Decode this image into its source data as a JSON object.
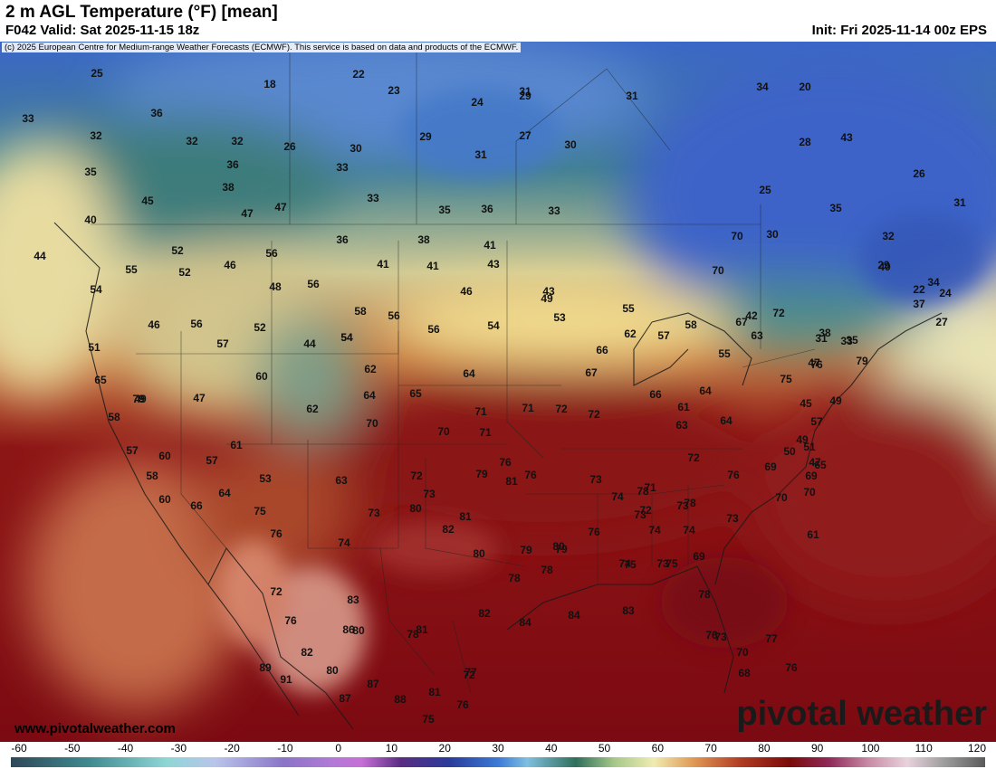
{
  "header": {
    "title": "2 m AGL Temperature (°F) [mean]",
    "valid": "F042 Valid: Sat 2025-11-15 18z",
    "init": "Init: Fri 2025-11-14 00z EPS"
  },
  "map": {
    "copyright": "(c) 2025 European Centre for Medium-range Weather Forecasts (ECMWF). This service is based on data and products of the ECMWF.",
    "values": [
      "25",
      "18",
      "22",
      "23",
      "31",
      "33",
      "36",
      "32",
      "32",
      "32",
      "26",
      "30",
      "29",
      "27",
      "30",
      "24",
      "35",
      "36",
      "38",
      "45",
      "47",
      "47",
      "33",
      "33",
      "35",
      "36",
      "33",
      "31",
      "29",
      "31",
      "44",
      "40",
      "52",
      "55",
      "52",
      "46",
      "56",
      "48",
      "56",
      "36",
      "41",
      "38",
      "41",
      "43",
      "46",
      "41",
      "43",
      "54",
      "54",
      "46",
      "56",
      "56",
      "52",
      "57",
      "44",
      "54",
      "58",
      "56",
      "54",
      "49",
      "53",
      "55",
      "62",
      "57",
      "58",
      "51",
      "65",
      "49",
      "47",
      "60",
      "62",
      "64",
      "58",
      "62",
      "64",
      "70",
      "65",
      "71",
      "70",
      "71",
      "71",
      "72",
      "72",
      "67",
      "66",
      "64",
      "61",
      "63",
      "64",
      "66",
      "55",
      "57",
      "60",
      "53",
      "63",
      "58",
      "57",
      "60",
      "66",
      "64",
      "61",
      "69",
      "75",
      "76",
      "74",
      "72",
      "73",
      "79",
      "80",
      "81",
      "82",
      "76",
      "76",
      "73",
      "73",
      "74",
      "71",
      "72",
      "73",
      "74",
      "74",
      "75",
      "69",
      "70",
      "76",
      "80",
      "81",
      "80",
      "79",
      "78",
      "79",
      "78",
      "78",
      "73",
      "78",
      "73",
      "74",
      "75",
      "72",
      "76",
      "73",
      "72",
      "76",
      "83",
      "86",
      "80",
      "78",
      "81",
      "82",
      "80",
      "89",
      "91",
      "87",
      "87",
      "88",
      "81",
      "75",
      "76",
      "72",
      "77",
      "82",
      "84",
      "84",
      "83",
      "78",
      "76",
      "73",
      "77",
      "70",
      "68",
      "76",
      "79",
      "79",
      "76",
      "75",
      "49",
      "45",
      "49",
      "47",
      "50",
      "51",
      "61",
      "70",
      "69",
      "65",
      "63",
      "67",
      "72",
      "70",
      "70",
      "42",
      "38",
      "35",
      "34",
      "32",
      "40",
      "43",
      "28",
      "30",
      "25",
      "34",
      "20",
      "26",
      "31",
      "29",
      "22",
      "24",
      "27",
      "35",
      "31",
      "33",
      "37",
      "47",
      "57",
      "33",
      "38",
      "34",
      "29",
      "47",
      "61"
    ],
    "brand": "pivotal weather",
    "site_url": "www.pivotalweather.com"
  },
  "legend": {
    "ticks": [
      "-60",
      "-50",
      "-40",
      "-30",
      "-20",
      "-10",
      "0",
      "10",
      "20",
      "30",
      "40",
      "50",
      "60",
      "70",
      "80",
      "90",
      "100",
      "110",
      "120"
    ],
    "units": "°F"
  },
  "colors": {
    "cold": "#3a62c9",
    "cool": "#4a8a70",
    "mild": "#e8e0a8",
    "warm": "#b6582e",
    "hot": "#7a0d10",
    "ocean_cold": "#2f5e8f",
    "ocean_warm": "#8c1212"
  }
}
